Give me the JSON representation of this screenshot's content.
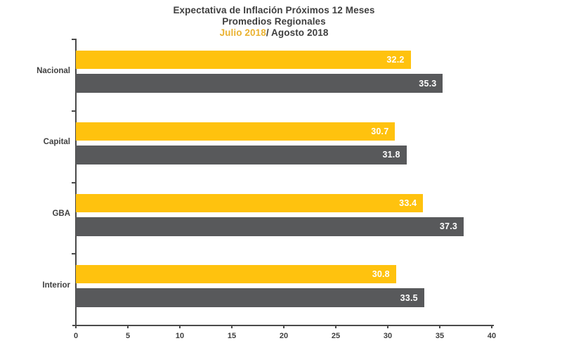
{
  "title": {
    "line1": "Expectativa de Inflación Próximos 12 Meses",
    "line2": "Promedios Regionales",
    "period1": "Julio 2018",
    "period2": "/ Agosto 2018"
  },
  "chart_data": {
    "type": "bar",
    "orientation": "horizontal",
    "title": "Expectativa de Inflación Próximos 12 Meses — Promedios Regionales — Julio 2018 / Agosto 2018",
    "categories": [
      "Nacional",
      "Capital",
      "GBA",
      "Interior"
    ],
    "series": [
      {
        "name": "Julio 2018",
        "color": "#ffc20e",
        "values": [
          32.2,
          30.7,
          33.4,
          30.8
        ]
      },
      {
        "name": "Agosto 2018",
        "color": "#58595b",
        "values": [
          35.3,
          31.8,
          37.3,
          33.5
        ]
      }
    ],
    "xlabel": "",
    "ylabel": "",
    "xlim": [
      0,
      40
    ],
    "x_ticks": [
      0,
      5,
      10,
      15,
      20,
      25,
      30,
      35,
      40
    ],
    "grid": false,
    "value_labels": true,
    "legend_position": "in-title",
    "colors": {
      "axis": "#4a4a4a",
      "tick_label": "#3f3f3f",
      "value_label": "#ffffff",
      "julio_title_text": "#eab231",
      "title_text": "#3f3f3f"
    }
  }
}
